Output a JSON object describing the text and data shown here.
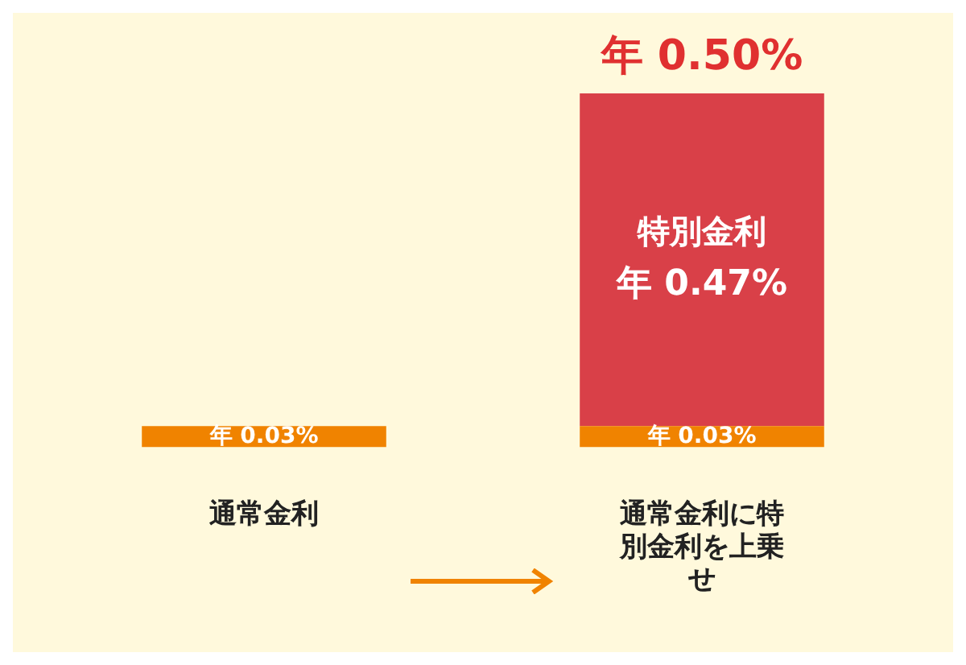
{
  "chart_data": {
    "type": "bar",
    "stacked": true,
    "categories": [
      "通常金利",
      "通常金利に特別金利を上乗せ"
    ],
    "series": [
      {
        "color": "#f08300",
        "values": [
          0.03,
          0.03
        ],
        "value_labels": [
          "年 0.03%",
          "年 0.03%"
        ]
      },
      {
        "name": "特別金利",
        "color": "#d94048",
        "values": [
          null,
          0.47
        ],
        "value_labels": [
          null,
          "年 0.47%"
        ]
      }
    ],
    "totals": [
      null,
      "年 0.50%"
    ],
    "legend": false,
    "grid": false,
    "tick_labels": "x"
  }
}
